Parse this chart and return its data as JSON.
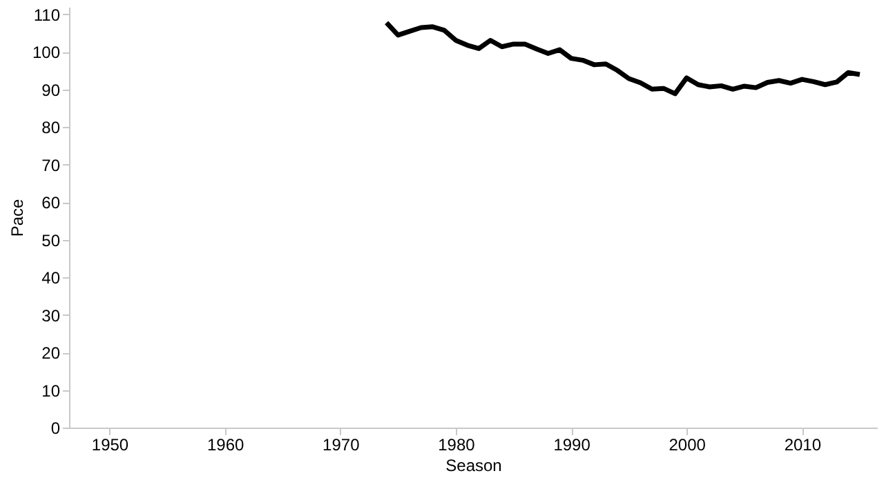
{
  "chart_data": {
    "type": "line",
    "xlabel": "Season",
    "ylabel": "Pace",
    "x": [
      1974,
      1975,
      1976,
      1977,
      1978,
      1979,
      1980,
      1981,
      1982,
      1983,
      1984,
      1985,
      1986,
      1987,
      1988,
      1989,
      1990,
      1991,
      1992,
      1993,
      1994,
      1995,
      1996,
      1997,
      1998,
      1999,
      2000,
      2001,
      2002,
      2003,
      2004,
      2005,
      2006,
      2007,
      2008,
      2009,
      2010,
      2011,
      2012,
      2013,
      2014,
      2015
    ],
    "series": [
      {
        "color": "#000000",
        "values": [
          107.8,
          104.5,
          105.5,
          106.5,
          106.7,
          105.8,
          103.1,
          101.8,
          100.9,
          103.1,
          101.4,
          102.1,
          102.1,
          100.8,
          99.6,
          100.6,
          98.3,
          97.8,
          96.6,
          96.8,
          95.1,
          92.9,
          91.8,
          90.1,
          90.3,
          88.9,
          93.1,
          91.3,
          90.7,
          91.0,
          90.1,
          90.9,
          90.5,
          91.9,
          92.4,
          91.7,
          92.7,
          92.1,
          91.3,
          92.0,
          94.5,
          94.0
        ]
      }
    ],
    "xlim": [
      1946.5,
      2016.5
    ],
    "xticks": [
      1950,
      1960,
      1970,
      1980,
      1990,
      2000,
      2010
    ],
    "ylim": [
      0,
      112
    ],
    "yticks": [
      0,
      10,
      20,
      30,
      40,
      50,
      60,
      70,
      80,
      90,
      100,
      110
    ],
    "grid": false,
    "marker": "none",
    "line_style": "solid"
  }
}
